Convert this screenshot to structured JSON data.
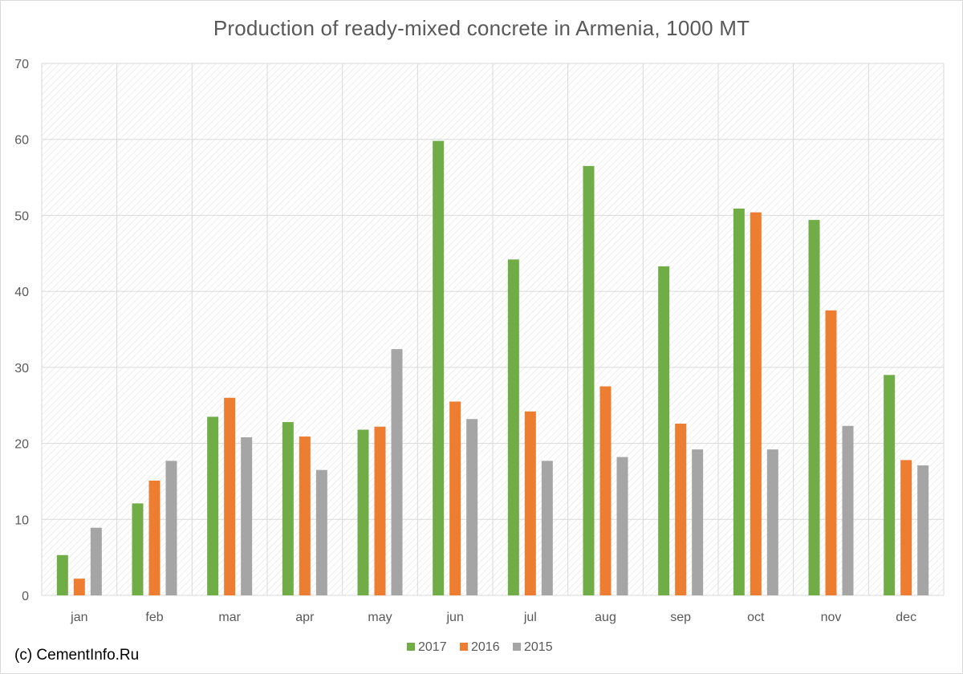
{
  "chart_data": {
    "type": "bar",
    "title": "Production of ready-mixed concrete in Armenia, 1000 MT",
    "xlabel": "",
    "ylabel": "",
    "categories": [
      "jan",
      "feb",
      "mar",
      "apr",
      "may",
      "jun",
      "jul",
      "aug",
      "sep",
      "oct",
      "nov",
      "dec"
    ],
    "series": [
      {
        "name": "2017",
        "color": "#70ad47",
        "values": [
          5.3,
          12.1,
          23.5,
          22.8,
          21.8,
          59.8,
          44.2,
          56.5,
          43.3,
          50.9,
          49.4,
          29.0
        ]
      },
      {
        "name": "2016",
        "color": "#ed7d31",
        "values": [
          2.2,
          15.1,
          26.0,
          20.9,
          22.2,
          25.5,
          24.2,
          27.5,
          22.6,
          50.4,
          37.5,
          17.8
        ]
      },
      {
        "name": "2015",
        "color": "#a5a5a5",
        "values": [
          8.9,
          17.7,
          20.8,
          16.5,
          32.4,
          23.2,
          17.7,
          18.2,
          19.2,
          19.2,
          22.3,
          17.1
        ]
      }
    ],
    "ylim": [
      0,
      70
    ],
    "yticks": [
      0,
      10,
      20,
      30,
      40,
      50,
      60,
      70
    ],
    "grid": true,
    "legend_position": "bottom",
    "background": "hatched"
  },
  "footer": {
    "credit": "(c) CementInfo.Ru"
  }
}
